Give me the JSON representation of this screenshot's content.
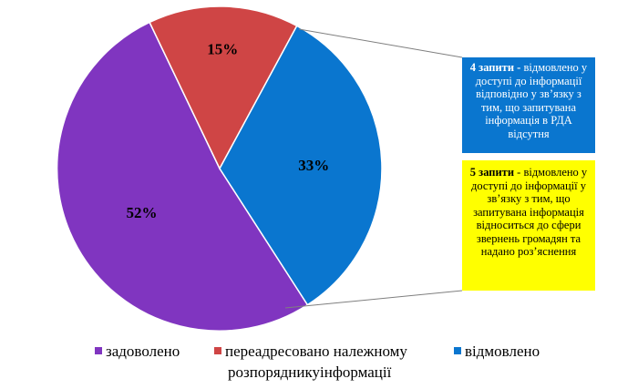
{
  "chart_data": {
    "type": "pie",
    "categories": [
      "задоволено",
      "переадресовано належному розпорядникуінформації",
      "відмовлено"
    ],
    "values": [
      52,
      15,
      33
    ],
    "labels": [
      "52%",
      "15%",
      "33%"
    ],
    "colors": [
      "#8035C0",
      "#CF4545",
      "#0A76CF"
    ],
    "title": "",
    "legend_position": "bottom"
  },
  "legend": {
    "items": [
      {
        "label": "задоволено",
        "color": "#8035C0"
      },
      {
        "label_line1": "переадресовано належному",
        "label_line2": "розпорядникуінформації",
        "color": "#CF4545"
      },
      {
        "label": "відмовлено",
        "color": "#0A76CF"
      }
    ]
  },
  "breakdown": {
    "boxes": [
      {
        "count": "4 запити -",
        "text": "відмовлено у доступі до інформації відповідно у зв’язку з тим, що запитувана інформація в РДА відсутня",
        "bg": "#0A76CF"
      },
      {
        "count": "5 запити",
        "text": "- відмовлено у доступі до інформації у зв’язку з тим, що запитувана інформація відноситься до сфери звернень громадян та надано роз’яснення",
        "bg": "#FFFF00"
      }
    ]
  }
}
